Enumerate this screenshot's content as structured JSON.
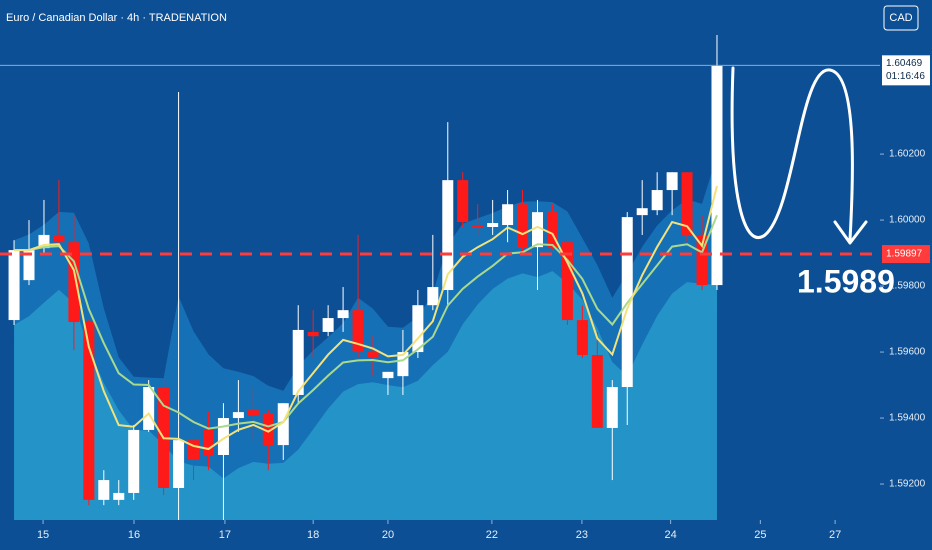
{
  "chart_data": {
    "type": "candlestick",
    "title": "Euro / Canadian Dollar · 4h · TRADENATION",
    "currency": "CAD",
    "up_color": "#ffffff",
    "down_color": "#ff1a1a",
    "open": [
      1.59697,
      1.59818,
      1.59915,
      1.59955,
      1.59933,
      1.59691,
      1.59152,
      1.59152,
      1.59173,
      1.59364,
      1.59494,
      1.59188,
      1.59333,
      1.59364,
      1.59288,
      1.594,
      1.59424,
      1.59415,
      1.59318,
      1.5947,
      1.59661,
      1.59661,
      1.59703,
      1.59727,
      1.596,
      1.59521,
      1.59527,
      1.596,
      1.59742,
      1.59788,
      1.60121,
      1.59982,
      1.59979,
      1.59985,
      1.60048,
      1.59918,
      1.60024,
      1.59933,
      1.59697,
      1.59591,
      1.5937,
      1.59494,
      1.60015,
      1.6003,
      1.60091,
      1.60145,
      1.59955,
      1.59803
    ],
    "high": [
      1.59939,
      1.6,
      1.60061,
      1.60121,
      1.60015,
      1.59697,
      1.59242,
      1.59212,
      1.59379,
      1.59515,
      1.59515,
      1.60388,
      1.594,
      1.59418,
      1.59445,
      1.59515,
      1.59494,
      1.59424,
      1.59445,
      1.59742,
      1.59727,
      1.59742,
      1.59797,
      1.59955,
      1.59648,
      1.5954,
      1.59667,
      1.59788,
      1.59955,
      1.60297,
      1.60145,
      1.60048,
      1.60061,
      1.60091,
      1.60091,
      1.60061,
      1.60048,
      1.59955,
      1.59742,
      1.59661,
      1.59515,
      1.60024,
      1.60121,
      1.60145,
      1.60145,
      1.60145,
      1.60015,
      1.60561
    ],
    "low": [
      1.59682,
      1.59803,
      1.59894,
      1.59924,
      1.59606,
      1.59136,
      1.59136,
      1.59136,
      1.59152,
      1.59358,
      1.59167,
      1.59091,
      1.59212,
      1.59242,
      1.59091,
      1.59358,
      1.59333,
      1.59242,
      1.59273,
      1.59445,
      1.59582,
      1.59648,
      1.59661,
      1.59582,
      1.59527,
      1.5947,
      1.5947,
      1.59582,
      1.59727,
      1.59742,
      1.59976,
      1.59955,
      1.59955,
      1.59933,
      1.59894,
      1.59788,
      1.59909,
      1.59682,
      1.59582,
      1.5937,
      1.59212,
      1.59379,
      1.59955,
      1.60015,
      1.60015,
      1.59933,
      1.59788,
      1.59788
    ],
    "close": [
      1.59909,
      1.59909,
      1.59955,
      1.59933,
      1.59691,
      1.59152,
      1.59212,
      1.59173,
      1.59364,
      1.59494,
      1.59188,
      1.59333,
      1.59273,
      1.59288,
      1.594,
      1.59418,
      1.59409,
      1.59318,
      1.59445,
      1.59667,
      1.59648,
      1.59703,
      1.59727,
      1.596,
      1.59582,
      1.5954,
      1.596,
      1.59742,
      1.59797,
      1.60121,
      1.59994,
      1.59976,
      1.59991,
      1.60048,
      1.59918,
      1.60024,
      1.59915,
      1.59697,
      1.59591,
      1.5937,
      1.59494,
      1.60009,
      1.60036,
      1.60091,
      1.60145,
      1.59955,
      1.59803,
      1.60467
    ],
    "xlim": [
      -0.94,
      57.9
    ],
    "xticks": [
      {
        "value": 1.94,
        "label": "15"
      },
      {
        "value": 8.02,
        "label": "16"
      },
      {
        "value": 14.1,
        "label": "17"
      },
      {
        "value": 20,
        "label": "18"
      },
      {
        "value": 25,
        "label": "20"
      },
      {
        "value": 31.95,
        "label": "22"
      },
      {
        "value": 37.97,
        "label": "23"
      },
      {
        "value": 43.9,
        "label": "24"
      },
      {
        "value": 49.9,
        "label": "25"
      },
      {
        "value": 54.9,
        "label": "27"
      }
    ],
    "ylim": [
      1.59091,
      1.60667
    ],
    "yticks": [
      {
        "value": 1.602,
        "label": "1.60200"
      },
      {
        "value": 1.6,
        "label": "1.60000"
      },
      {
        "value": 1.598,
        "label": "1.59800"
      },
      {
        "value": 1.596,
        "label": "1.59600"
      },
      {
        "value": 1.594,
        "label": "1.59400"
      },
      {
        "value": 1.592,
        "label": "1.59200"
      }
    ],
    "current_price": {
      "value": 1.60469,
      "label": "1.60469"
    },
    "countdown": "01:16:46",
    "level": {
      "value": 1.59897,
      "label": "1.59897",
      "color": "#ff3b3b"
    },
    "annotation": "1.5989"
  }
}
